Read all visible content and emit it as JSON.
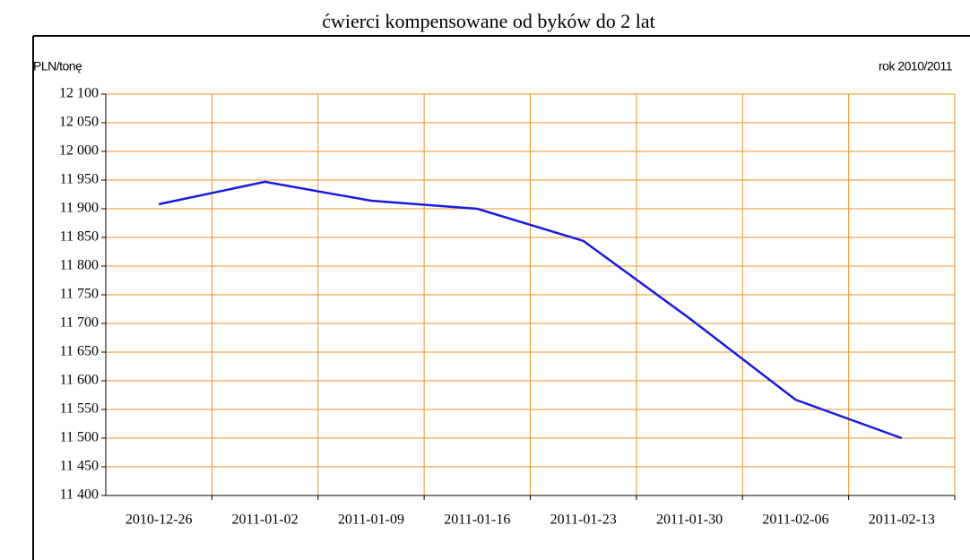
{
  "chart_data": {
    "type": "line",
    "title": "ćwierci kompensowane od byków do 2 lat",
    "y_label": "PLN/tonę",
    "annotation": "rok 2010/2011",
    "categories": [
      "2010-12-26",
      "2011-01-02",
      "2011-01-09",
      "2011-01-16",
      "2011-01-23",
      "2011-01-30",
      "2011-02-06",
      "2011-02-13"
    ],
    "values": [
      11908,
      11947,
      11914,
      11900,
      11844,
      11709,
      11567,
      11500
    ],
    "color": "#1a1ae0",
    "grid_color": "#f0902a",
    "ylim": [
      11400,
      12100
    ],
    "yticks": [
      {
        "value": 11400,
        "label": "11 400"
      },
      {
        "value": 11450,
        "label": "11 450"
      },
      {
        "value": 11500,
        "label": "11 500"
      },
      {
        "value": 11550,
        "label": "11 550"
      },
      {
        "value": 11600,
        "label": "11 600"
      },
      {
        "value": 11650,
        "label": "11 650"
      },
      {
        "value": 11700,
        "label": "11 700"
      },
      {
        "value": 11750,
        "label": "11 750"
      },
      {
        "value": 11800,
        "label": "11 800"
      },
      {
        "value": 11850,
        "label": "11 850"
      },
      {
        "value": 11900,
        "label": "11 900"
      },
      {
        "value": 11950,
        "label": "11 950"
      },
      {
        "value": 12000,
        "label": "12 000"
      },
      {
        "value": 12050,
        "label": "12 050"
      },
      {
        "value": 12100,
        "label": "12 100"
      }
    ],
    "grid": true
  }
}
